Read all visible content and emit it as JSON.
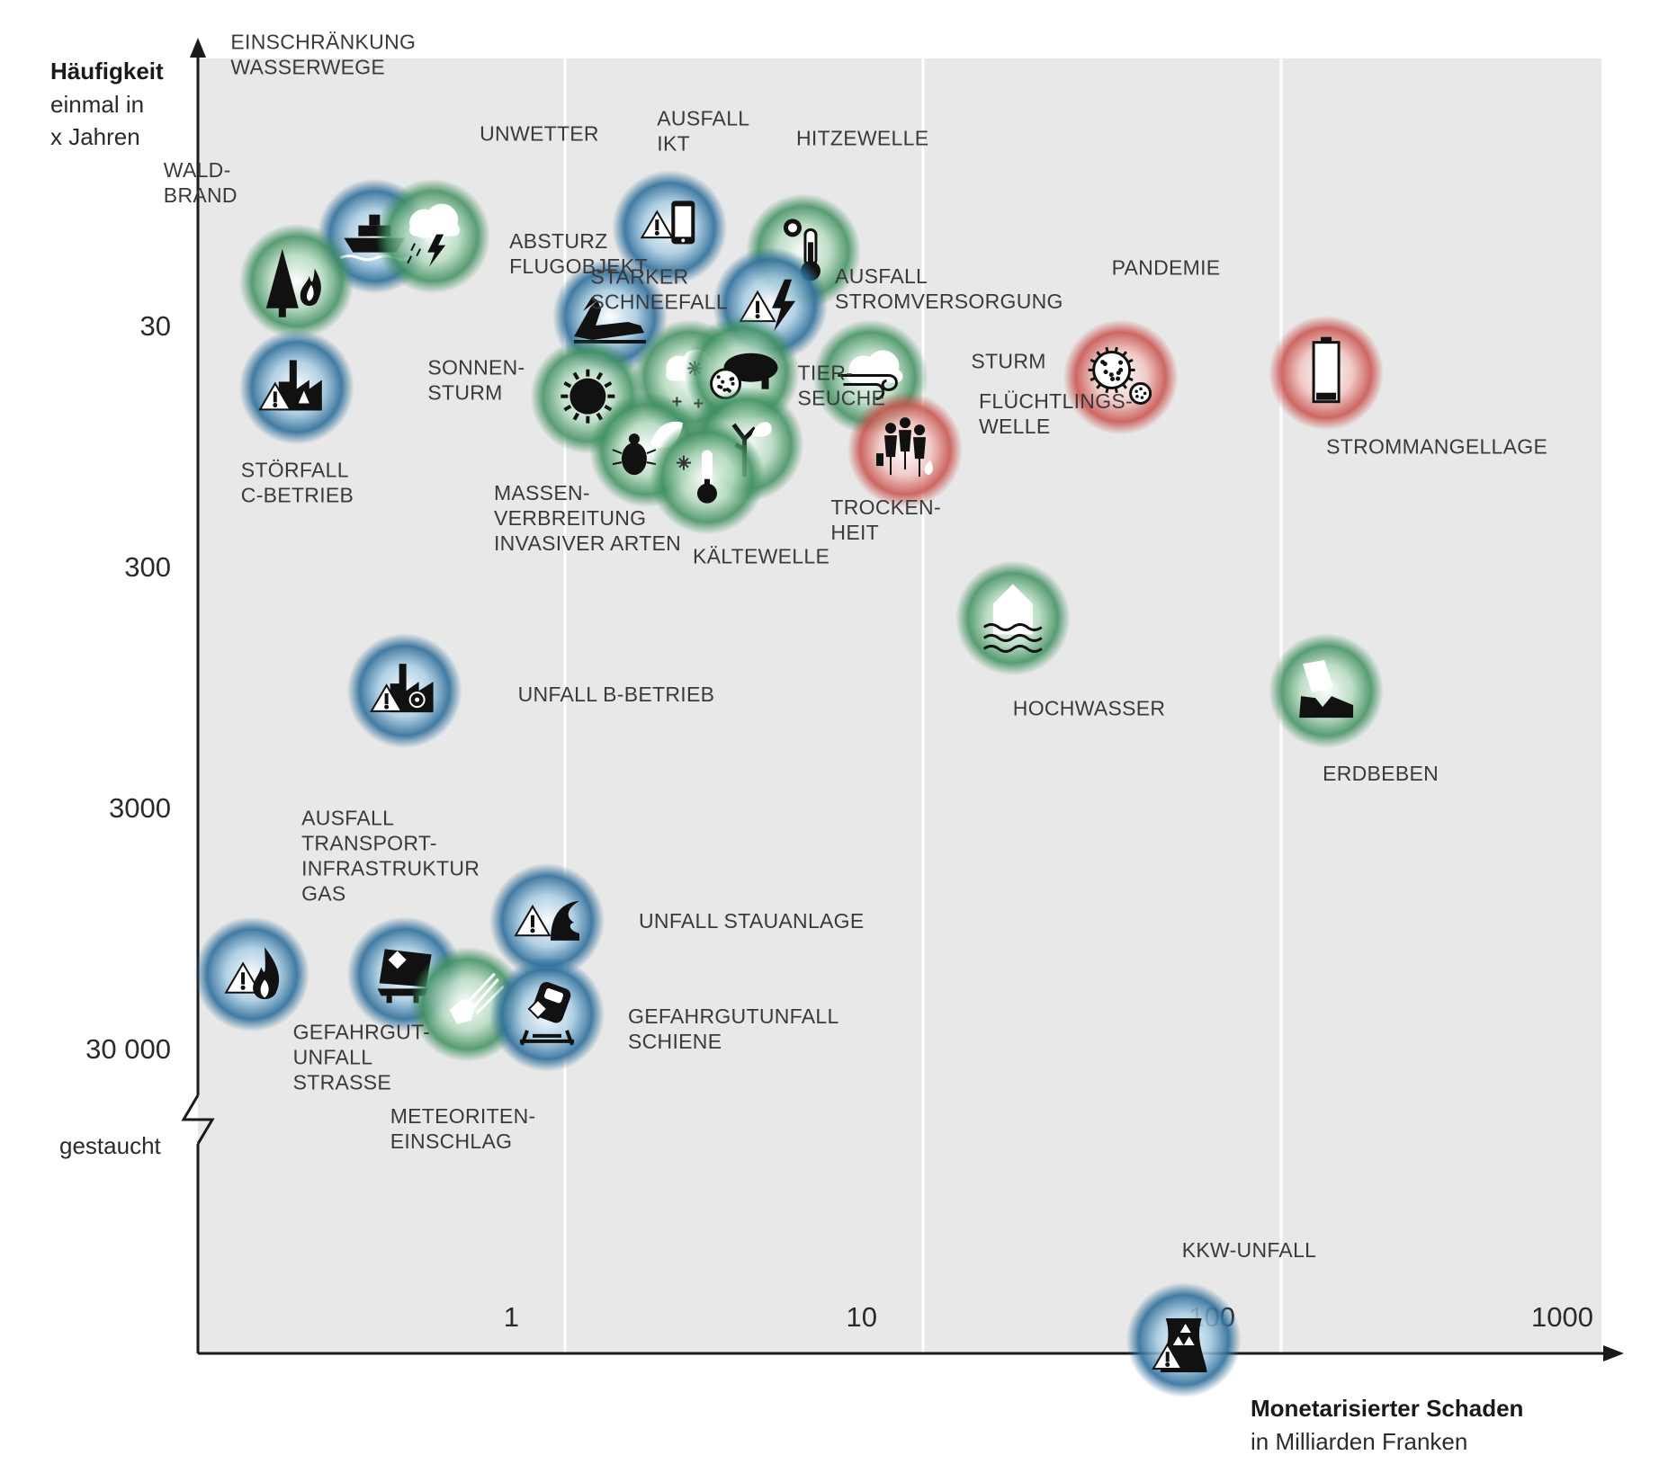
{
  "colors": {
    "plot_bg": "#e8e8e8",
    "blue": "#2f6f9a",
    "green": "#3f8f5f",
    "red": "#c8504a",
    "axis": "#1a1a1a"
  },
  "chart_data": {
    "type": "scatter",
    "xlabel": "Monetarisierter Schaden",
    "xlabel_sub": "in Milliarden Franken",
    "ylabel": "Häufigkeit",
    "ylabel_sub": [
      "einmal in",
      "x Jahren"
    ],
    "x_scale": "log",
    "y_scale": "log",
    "x_ticks": [
      "1",
      "10",
      "100",
      "1000"
    ],
    "y_ticks": [
      "30",
      "300",
      "3000",
      "30 000"
    ],
    "y_break_label": "gestaucht",
    "grid": "vertical",
    "points": [
      {
        "name": [
          "EINSCHRÄNKUNG",
          "WASSERWEGE"
        ],
        "x": 0.33,
        "y": 13,
        "color": "blue",
        "icon": "ship-icon"
      },
      {
        "name": [
          "UNWETTER"
        ],
        "x": 0.48,
        "y": 13,
        "color": "green",
        "icon": "storm-cloud-icon"
      },
      {
        "name": [
          "WALD-",
          "BRAND"
        ],
        "x": 0.2,
        "y": 20,
        "color": "green",
        "icon": "forest-fire-icon"
      },
      {
        "name": [
          "AUSFALL",
          "IKT"
        ],
        "x": 2.2,
        "y": 12,
        "color": "blue",
        "icon": "phone-warning-icon"
      },
      {
        "name": [
          "ABSTURZ",
          "FLUGOBJEKT"
        ],
        "x": 1.5,
        "y": 28,
        "color": "blue",
        "icon": "plane-crash-icon"
      },
      {
        "name": [
          "HITZEWELLE"
        ],
        "x": 5.2,
        "y": 15,
        "color": "green",
        "icon": "hot-thermometer-icon"
      },
      {
        "name": [
          "AUSFALL",
          "STROMVERSORGUNG"
        ],
        "x": 4.2,
        "y": 25,
        "color": "blue",
        "icon": "power-warning-icon"
      },
      {
        "name": [
          "STARKER",
          "SCHNEEFALL"
        ],
        "x": 2.5,
        "y": 50,
        "color": "green",
        "icon": "snow-cloud-icon"
      },
      {
        "name": [
          "SONNEN-",
          "STURM"
        ],
        "x": 1.3,
        "y": 60,
        "color": "green",
        "icon": "sun-icon"
      },
      {
        "name": [
          "TIER-",
          "SEUCHE"
        ],
        "x": 3.5,
        "y": 48,
        "color": "green",
        "icon": "pig-virus-icon"
      },
      {
        "name": [
          "STURM"
        ],
        "x": 8,
        "y": 50,
        "color": "green",
        "icon": "wind-cloud-icon"
      },
      {
        "name": [
          "MASSEN-",
          "VERBREITUNG",
          "INVASIVER ARTEN"
        ],
        "x": 1.9,
        "y": 100,
        "color": "green",
        "icon": "beetle-leaf-icon"
      },
      {
        "name": [
          "TROCKEN-",
          "HEIT"
        ],
        "x": 3.6,
        "y": 95,
        "color": "green",
        "icon": "dry-tree-icon"
      },
      {
        "name": [
          "KÄLTEWELLE"
        ],
        "x": 2.8,
        "y": 130,
        "color": "green",
        "icon": "cold-thermometer-icon"
      },
      {
        "name": [
          "FLÜCHTLINGS-",
          "WELLE"
        ],
        "x": 10,
        "y": 100,
        "color": "red",
        "icon": "refugees-icon"
      },
      {
        "name": [
          "PANDEMIE"
        ],
        "x": 40,
        "y": 50,
        "color": "red",
        "icon": "virus-icon"
      },
      {
        "name": [
          "STROMMANGELLAGE"
        ],
        "x": 150,
        "y": 48,
        "color": "red",
        "icon": "battery-low-icon"
      },
      {
        "name": [
          "STÖRFALL",
          "C-BETRIEB"
        ],
        "x": 0.2,
        "y": 55,
        "color": "blue",
        "icon": "factory-warning-icon"
      },
      {
        "name": [
          "HOCHWASSER"
        ],
        "x": 20,
        "y": 500,
        "color": "green",
        "icon": "flood-icon"
      },
      {
        "name": [
          "UNFALL B-BETRIEB"
        ],
        "x": 0.4,
        "y": 1000,
        "color": "blue",
        "icon": "biohazard-factory-icon"
      },
      {
        "name": [
          "ERDBEBEN"
        ],
        "x": 150,
        "y": 1000,
        "color": "green",
        "icon": "earthquake-icon"
      },
      {
        "name": [
          "UNFALL STAUANLAGE"
        ],
        "x": 1,
        "y": 9000,
        "color": "blue",
        "icon": "dam-wave-icon"
      },
      {
        "name": [
          "AUSFALL",
          "TRANSPORT-",
          "INFRASTRUKTUR",
          "GAS"
        ],
        "x": 0.15,
        "y": 15000,
        "color": "blue",
        "icon": "gas-flame-icon"
      },
      {
        "name": [
          "GEFAHRGUT-",
          "UNFALL",
          "STRASSE"
        ],
        "x": 0.4,
        "y": 15000,
        "color": "blue",
        "icon": "truck-hazard-icon"
      },
      {
        "name": [
          "METEORITEN-",
          "EINSCHLAG"
        ],
        "x": 0.6,
        "y": 20000,
        "color": "green",
        "icon": "meteorite-icon"
      },
      {
        "name": [
          "GEFAHRGUTUNFALL",
          "SCHIENE"
        ],
        "x": 1,
        "y": 22000,
        "color": "blue",
        "icon": "train-hazard-icon"
      },
      {
        "name": [
          "KKW-UNFALL"
        ],
        "x": 60,
        "y": 1000000,
        "color": "blue",
        "icon": "nuclear-plant-icon"
      }
    ]
  }
}
